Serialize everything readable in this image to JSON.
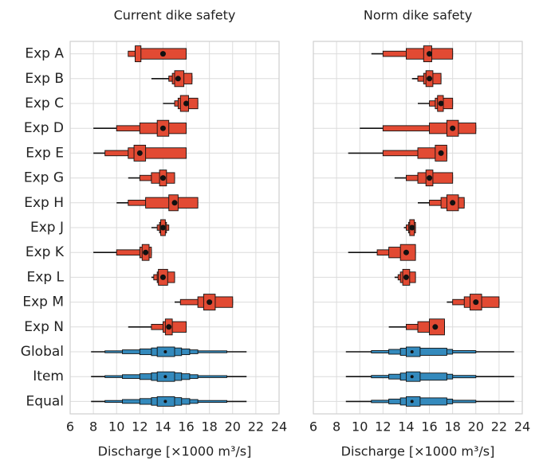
{
  "chart_data": [
    {
      "type": "boxen",
      "title": "Current dike safety",
      "xlabel": "Discharge [×1000 m³/s]",
      "xlim": [
        6,
        24
      ],
      "xticks": [
        6,
        8,
        10,
        12,
        14,
        16,
        18,
        20,
        22,
        24
      ],
      "grid": true,
      "rows": [
        {
          "label": "Exp A",
          "color": "#e24a33",
          "whisker": [
            11,
            16
          ],
          "boxes": [
            [
              11,
              16
            ],
            [
              11.6,
              16
            ],
            [
              11.6,
              12.1
            ]
          ],
          "median": 14
        },
        {
          "label": "Exp B",
          "color": "#e24a33",
          "whisker": [
            13,
            16.5
          ],
          "boxes": [
            [
              14.5,
              16.5
            ],
            [
              14.8,
              16.5
            ],
            [
              15,
              15.8
            ]
          ],
          "median": 15.3
        },
        {
          "label": "Exp C",
          "color": "#e24a33",
          "whisker": [
            14,
            17
          ],
          "boxes": [
            [
              15,
              17
            ],
            [
              15.3,
              17
            ],
            [
              15.5,
              16.2
            ]
          ],
          "median": 16
        },
        {
          "label": "Exp D",
          "color": "#e24a33",
          "whisker": [
            8,
            16
          ],
          "boxes": [
            [
              10,
              16
            ],
            [
              12,
              16
            ],
            [
              13.5,
              14.5
            ]
          ],
          "median": 14
        },
        {
          "label": "Exp E",
          "color": "#e24a33",
          "whisker": [
            8,
            16
          ],
          "boxes": [
            [
              9,
              16
            ],
            [
              11,
              16
            ],
            [
              11.5,
              12.5
            ]
          ],
          "median": 12
        },
        {
          "label": "Exp G",
          "color": "#e24a33",
          "whisker": [
            11,
            15
          ],
          "boxes": [
            [
              12,
              15
            ],
            [
              13,
              15
            ],
            [
              13.7,
              14.3
            ]
          ],
          "median": 14
        },
        {
          "label": "Exp H",
          "color": "#e24a33",
          "whisker": [
            10,
            17
          ],
          "boxes": [
            [
              11,
              17
            ],
            [
              12.5,
              17
            ],
            [
              14.5,
              15.3
            ]
          ],
          "median": 15
        },
        {
          "label": "Exp J",
          "color": "#e24a33",
          "whisker": [
            13,
            14.5
          ],
          "boxes": [
            [
              13.5,
              14.5
            ],
            [
              13.7,
              14.3
            ],
            [
              13.8,
              14.2
            ]
          ],
          "median": 14
        },
        {
          "label": "Exp K",
          "color": "#e24a33",
          "whisker": [
            8,
            13
          ],
          "boxes": [
            [
              10,
              13
            ],
            [
              12,
              13
            ],
            [
              12.2,
              12.8
            ]
          ],
          "median": 12.5
        },
        {
          "label": "Exp L",
          "color": "#e24a33",
          "whisker": [
            13,
            15
          ],
          "boxes": [
            [
              13.2,
              15
            ],
            [
              13.5,
              15
            ],
            [
              13.6,
              14.4
            ]
          ],
          "median": 14
        },
        {
          "label": "Exp M",
          "color": "#e24a33",
          "whisker": [
            15,
            20
          ],
          "boxes": [
            [
              15.5,
              20
            ],
            [
              17,
              20
            ],
            [
              17.5,
              18.5
            ]
          ],
          "median": 18
        },
        {
          "label": "Exp N",
          "color": "#e24a33",
          "whisker": [
            11,
            16
          ],
          "boxes": [
            [
              13,
              16
            ],
            [
              14,
              16
            ],
            [
              14.2,
              14.8
            ]
          ],
          "median": 14.5
        },
        {
          "label": "Global",
          "color": "#348abd",
          "whisker": [
            7.8,
            21.2
          ],
          "boxes": [
            [
              9,
              19.5
            ],
            [
              10.5,
              17
            ],
            [
              12,
              16.3
            ],
            [
              13,
              15.6
            ],
            [
              13.5,
              15
            ]
          ],
          "median": 14.2
        },
        {
          "label": "Item",
          "color": "#348abd",
          "whisker": [
            7.8,
            21.2
          ],
          "boxes": [
            [
              9,
              19.5
            ],
            [
              10.5,
              17
            ],
            [
              12,
              16.3
            ],
            [
              13,
              15.6
            ],
            [
              13.5,
              15
            ]
          ],
          "median": 14.2
        },
        {
          "label": "Equal",
          "color": "#348abd",
          "whisker": [
            7.8,
            21.2
          ],
          "boxes": [
            [
              9,
              19.5
            ],
            [
              10.5,
              17
            ],
            [
              12,
              16.3
            ],
            [
              13,
              15.6
            ],
            [
              13.5,
              15
            ]
          ],
          "median": 14.2
        }
      ]
    },
    {
      "type": "boxen",
      "title": "Norm dike safety",
      "xlabel": "Discharge [×1000 m³/s]",
      "xlim": [
        6,
        24
      ],
      "xticks": [
        6,
        8,
        10,
        12,
        14,
        16,
        18,
        20,
        22,
        24
      ],
      "grid": true,
      "rows": [
        {
          "color": "#e24a33",
          "whisker": [
            11,
            18
          ],
          "boxes": [
            [
              12,
              18
            ],
            [
              14,
              18
            ],
            [
              15.5,
              16.2
            ]
          ],
          "median": 16
        },
        {
          "color": "#e24a33",
          "whisker": [
            14.5,
            17
          ],
          "boxes": [
            [
              15,
              17
            ],
            [
              15.5,
              17
            ],
            [
              15.7,
              16.3
            ]
          ],
          "median": 16
        },
        {
          "color": "#e24a33",
          "whisker": [
            15,
            18
          ],
          "boxes": [
            [
              16,
              18
            ],
            [
              16.5,
              18
            ],
            [
              16.7,
              17.2
            ]
          ],
          "median": 17
        },
        {
          "color": "#e24a33",
          "whisker": [
            10,
            20
          ],
          "boxes": [
            [
              12,
              20
            ],
            [
              16,
              20
            ],
            [
              17.5,
              18.5
            ]
          ],
          "median": 18
        },
        {
          "color": "#e24a33",
          "whisker": [
            9,
            17.5
          ],
          "boxes": [
            [
              12,
              17.5
            ],
            [
              15,
              17.5
            ],
            [
              16.5,
              17.5
            ]
          ],
          "median": 17
        },
        {
          "color": "#e24a33",
          "whisker": [
            13,
            18
          ],
          "boxes": [
            [
              14,
              18
            ],
            [
              15,
              18
            ],
            [
              15.7,
              16.3
            ]
          ],
          "median": 16
        },
        {
          "color": "#e24a33",
          "whisker": [
            15,
            19
          ],
          "boxes": [
            [
              16,
              19
            ],
            [
              17,
              19
            ],
            [
              17.5,
              18.5
            ]
          ],
          "median": 18
        },
        {
          "color": "#e24a33",
          "whisker": [
            13.8,
            14.8
          ],
          "boxes": [
            [
              14,
              14.8
            ],
            [
              14.2,
              14.8
            ],
            [
              14.3,
              14.7
            ]
          ],
          "median": 14.5
        },
        {
          "color": "#e24a33",
          "whisker": [
            9,
            14.8
          ],
          "boxes": [
            [
              11.5,
              14.8
            ],
            [
              12.5,
              14.8
            ],
            [
              13.5,
              14.8
            ]
          ],
          "median": 14
        },
        {
          "color": "#e24a33",
          "whisker": [
            13,
            14.8
          ],
          "boxes": [
            [
              13.3,
              14.8
            ],
            [
              13.5,
              14.8
            ],
            [
              13.7,
              14.3
            ]
          ],
          "median": 14
        },
        {
          "color": "#e24a33",
          "whisker": [
            17.5,
            22
          ],
          "boxes": [
            [
              18,
              22
            ],
            [
              19,
              22
            ],
            [
              19.5,
              20.5
            ]
          ],
          "median": 20
        },
        {
          "color": "#e24a33",
          "whisker": [
            12.5,
            17.3
          ],
          "boxes": [
            [
              14,
              17.3
            ],
            [
              15,
              17.3
            ],
            [
              16,
              17.3
            ]
          ],
          "median": 16.5
        },
        {
          "color": "#348abd",
          "whisker": [
            8.8,
            23.3
          ],
          "boxes": [
            [
              11,
              20
            ],
            [
              12.5,
              18
            ],
            [
              13.5,
              17.5
            ],
            [
              14,
              15.2
            ]
          ],
          "median": 14.5
        },
        {
          "color": "#348abd",
          "whisker": [
            8.8,
            23.3
          ],
          "boxes": [
            [
              11,
              20
            ],
            [
              12.5,
              18
            ],
            [
              13.5,
              17.5
            ],
            [
              14,
              15.2
            ]
          ],
          "median": 14.5
        },
        {
          "color": "#348abd",
          "whisker": [
            8.8,
            23.3
          ],
          "boxes": [
            [
              11,
              20
            ],
            [
              12.5,
              18
            ],
            [
              13.5,
              17.5
            ],
            [
              14,
              15.2
            ]
          ],
          "median": 14.5
        }
      ]
    }
  ]
}
